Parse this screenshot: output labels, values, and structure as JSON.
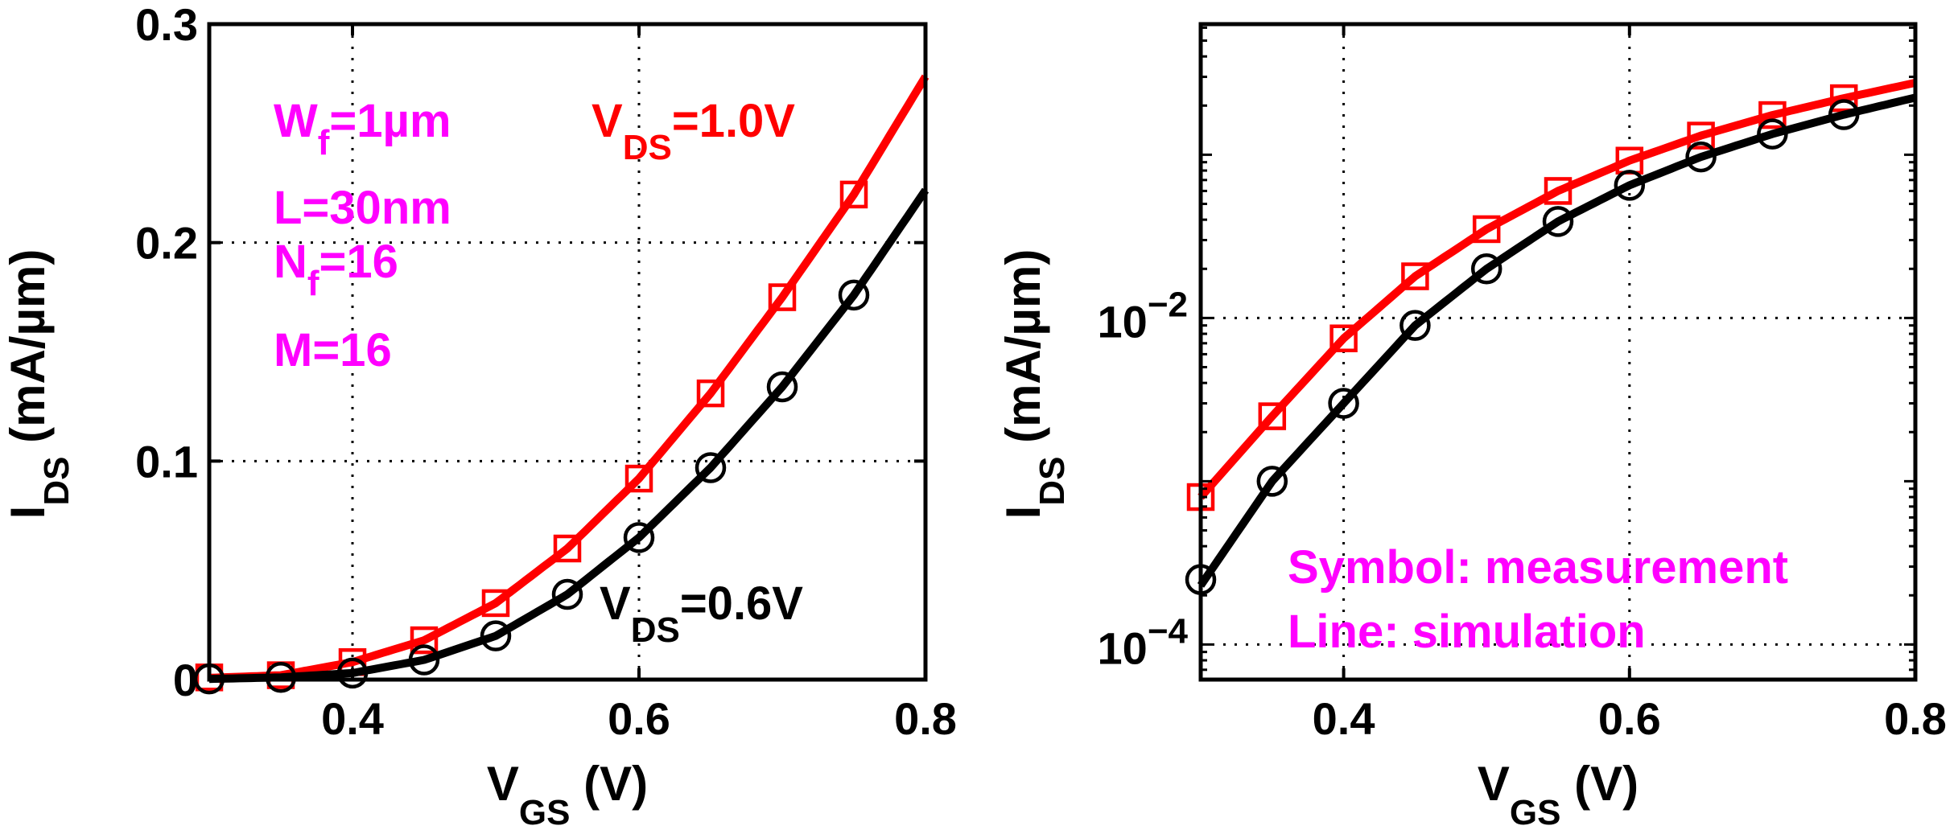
{
  "figure_colors": {
    "sim_1v0": "#ff0000",
    "sim_0v6": "#000000",
    "annotation": "#ff00ff"
  },
  "chart_data": [
    {
      "type": "line",
      "panel": "left",
      "yscale": "linear",
      "xlabel_main": "V",
      "xlabel_sub": "GS",
      "xlabel_unit": " (V)",
      "ylabel_main": "I",
      "ylabel_sub": "DS",
      "ylabel_unit": " (mA/µm)",
      "xlim": [
        0.3,
        0.8
      ],
      "ylim": [
        0,
        0.3
      ],
      "xticks": [
        0.4,
        0.6,
        0.8
      ],
      "xtick_labels": [
        "0.4",
        "0.6",
        "0.8"
      ],
      "yticks": [
        0,
        0.1,
        0.2,
        0.3
      ],
      "ytick_labels": [
        "0",
        "0.1",
        "0.2",
        "0.3"
      ],
      "grid": true,
      "annotations": {
        "params": [
          {
            "main": "W",
            "sub": "f",
            "rest": "=1µm"
          },
          {
            "main": "L=30nm",
            "sub": "",
            "rest": ""
          },
          {
            "main": "N",
            "sub": "f",
            "rest": "=16"
          },
          {
            "main": "M=16",
            "sub": "",
            "rest": ""
          }
        ],
        "vds_high": {
          "main": "V",
          "sub": "DS",
          "rest": "=1.0V"
        },
        "vds_low": {
          "main": "V",
          "sub": "DS",
          "rest": "=0.6V"
        }
      },
      "series": [
        {
          "name": "VDS=1.0V",
          "color": "#ff0000",
          "marker": "square",
          "meas_x": [
            0.3,
            0.35,
            0.4,
            0.45,
            0.5,
            0.55,
            0.6,
            0.65,
            0.7,
            0.75
          ],
          "meas_y": [
            0.001,
            0.002,
            0.008,
            0.018,
            0.035,
            0.06,
            0.092,
            0.131,
            0.175,
            0.222
          ],
          "sim_x": [
            0.3,
            0.35,
            0.4,
            0.45,
            0.5,
            0.55,
            0.6,
            0.65,
            0.7,
            0.75,
            0.8
          ],
          "sim_y": [
            0.0008,
            0.002,
            0.008,
            0.018,
            0.035,
            0.06,
            0.092,
            0.131,
            0.175,
            0.222,
            0.276
          ]
        },
        {
          "name": "VDS=0.6V",
          "color": "#000000",
          "marker": "circle",
          "meas_x": [
            0.3,
            0.35,
            0.4,
            0.45,
            0.5,
            0.55,
            0.6,
            0.65,
            0.7,
            0.75
          ],
          "meas_y": [
            0.0003,
            0.001,
            0.003,
            0.009,
            0.02,
            0.039,
            0.065,
            0.097,
            0.134,
            0.176
          ],
          "sim_x": [
            0.3,
            0.35,
            0.4,
            0.45,
            0.5,
            0.55,
            0.6,
            0.65,
            0.7,
            0.75,
            0.8
          ],
          "sim_y": [
            0.0003,
            0.001,
            0.003,
            0.009,
            0.02,
            0.039,
            0.065,
            0.097,
            0.134,
            0.176,
            0.224
          ]
        }
      ]
    },
    {
      "type": "line",
      "panel": "right",
      "yscale": "log",
      "xlabel_main": "V",
      "xlabel_sub": "GS",
      "xlabel_unit": " (V)",
      "ylabel_main": "I",
      "ylabel_sub": "DS",
      "ylabel_unit": " (mA/µm)",
      "xlim": [
        0.3,
        0.8
      ],
      "ylim_log10": [
        -4.215,
        -0.2
      ],
      "xticks": [
        0.4,
        0.6,
        0.8
      ],
      "xtick_labels": [
        "0.4",
        "0.6",
        "0.8"
      ],
      "yticks_exp": [
        -4,
        -2
      ],
      "ytick_base": "10",
      "ytick_exp_labels": [
        "−4",
        "−2"
      ],
      "grid": true,
      "legend_text": [
        "Symbol: measurement",
        "Line: simulation"
      ],
      "series": [
        {
          "name": "VDS=1.0V",
          "color": "#ff0000",
          "marker": "square",
          "meas_x": [
            0.3,
            0.35,
            0.4,
            0.45,
            0.5,
            0.55,
            0.6,
            0.65,
            0.7,
            0.75
          ],
          "meas_y": [
            0.0008,
            0.0025,
            0.0075,
            0.018,
            0.035,
            0.06,
            0.092,
            0.131,
            0.175,
            0.222
          ],
          "sim_x": [
            0.3,
            0.35,
            0.4,
            0.45,
            0.5,
            0.55,
            0.6,
            0.65,
            0.7,
            0.75,
            0.8
          ],
          "sim_y": [
            0.0008,
            0.0025,
            0.0075,
            0.018,
            0.035,
            0.06,
            0.092,
            0.131,
            0.175,
            0.222,
            0.276
          ]
        },
        {
          "name": "VDS=0.6V",
          "color": "#000000",
          "marker": "circle",
          "meas_x": [
            0.3,
            0.35,
            0.4,
            0.45,
            0.5,
            0.55,
            0.6,
            0.65,
            0.7,
            0.75
          ],
          "meas_y": [
            0.00025,
            0.001,
            0.003,
            0.009,
            0.02,
            0.039,
            0.065,
            0.097,
            0.134,
            0.176
          ],
          "sim_x": [
            0.3,
            0.35,
            0.4,
            0.45,
            0.5,
            0.55,
            0.6,
            0.65,
            0.7,
            0.75,
            0.8
          ],
          "sim_y": [
            0.00023,
            0.001,
            0.003,
            0.009,
            0.02,
            0.039,
            0.065,
            0.097,
            0.134,
            0.176,
            0.224
          ]
        }
      ]
    }
  ]
}
